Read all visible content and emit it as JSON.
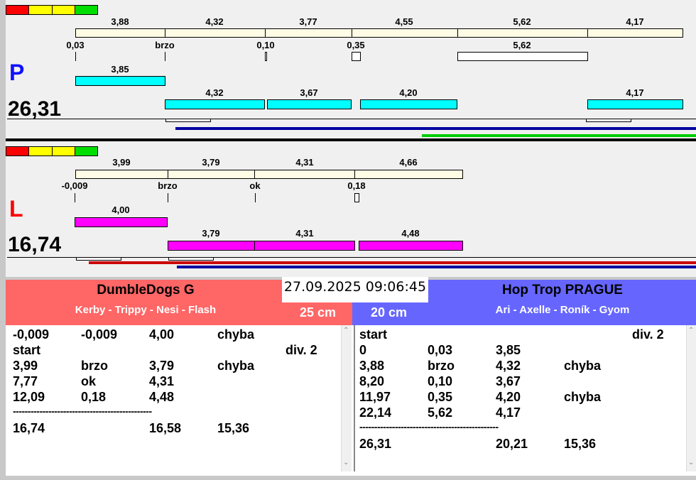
{
  "colors": {
    "red_team": "#ff6666",
    "blue_team": "#6666ff",
    "accent_red": "#ff0000",
    "accent_blue": "#1010ff",
    "cyan": "#00ffff",
    "magenta": "#ff00ff"
  },
  "lane_p": {
    "letter": "P",
    "total": "26,31",
    "segment_labels": [
      "3,88",
      "4,32",
      "3,77",
      "4,55",
      "5,62",
      "4,17"
    ],
    "reaction_labels": [
      "0,03",
      "brzo",
      "0,10",
      "0,35",
      "5,62"
    ],
    "cyan_labels": [
      "3,85",
      "4,32",
      "3,67",
      "4,20",
      "4,17"
    ]
  },
  "lane_l": {
    "letter": "L",
    "total": "16,74",
    "segment_labels": [
      "3,99",
      "3,79",
      "4,31",
      "4,66"
    ],
    "reaction_labels": [
      "-0,009",
      "brzo",
      "ok",
      "0,18"
    ],
    "magenta_labels": [
      "4,00",
      "3,79",
      "4,31",
      "4,48"
    ]
  },
  "datetime": "27.09.2025 09:06:45",
  "left_team": {
    "name": "DumbleDogs G",
    "dogs": "Kerby - Trippy - Nesi - Flash",
    "height": "25 cm",
    "rows": [
      [
        "-0,009",
        "-0,009",
        "4,00",
        "chyba",
        ""
      ],
      [
        "start",
        "",
        "",
        "",
        "div.  2"
      ],
      [
        "3,99",
        "brzo",
        "3,79",
        "chyba",
        ""
      ],
      [
        "7,77",
        "ok",
        "4,31",
        "",
        ""
      ],
      [
        "12,09",
        "0,18",
        "4,48",
        "",
        ""
      ]
    ],
    "separator": "-----------------------------------------------",
    "totals": [
      "16,74",
      "",
      "16,58",
      "15,36"
    ]
  },
  "right_team": {
    "name": "Hop Trop PRAGUE",
    "dogs": "Ari - Axelle - Roník - Gyom",
    "height": "20 cm",
    "rows": [
      [
        "start",
        "",
        "",
        "",
        "div.  2"
      ],
      [
        "0",
        "0,03",
        "3,85",
        "",
        ""
      ],
      [
        "3,88",
        "brzo",
        "4,32",
        "chyba",
        ""
      ],
      [
        "8,20",
        "0,10",
        "3,67",
        "",
        ""
      ],
      [
        "11,97",
        "0,35",
        "4,20",
        "chyba",
        ""
      ],
      [
        "22,14",
        "5,62",
        "4,17",
        "",
        ""
      ]
    ],
    "separator": "-----------------------------------------------",
    "totals": [
      "26,31",
      "",
      "20,21",
      "15,36"
    ]
  }
}
